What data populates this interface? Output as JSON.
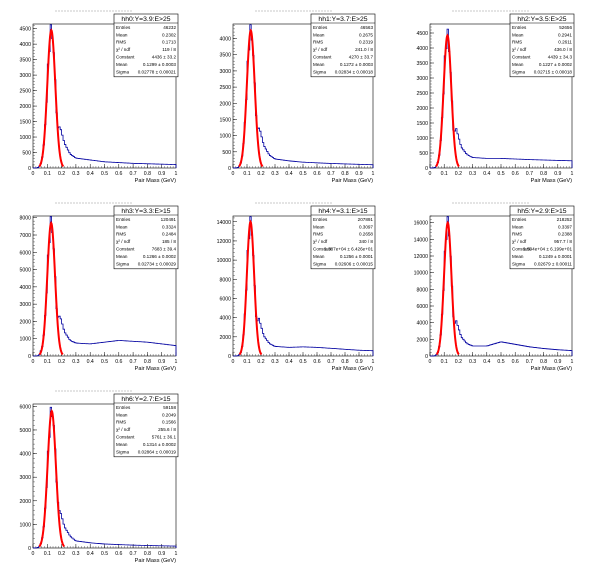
{
  "chart_data": [
    {
      "type": "histogram",
      "title": "hh0:Y=3.9:E>25",
      "xlabel": "Pair Mass (GeV)",
      "xlim": [
        0,
        1
      ],
      "ylim": [
        0,
        4650
      ],
      "xticks": [
        "0",
        "0.1",
        "0.2",
        "0.3",
        "0.4",
        "0.5",
        "0.6",
        "0.7",
        "0.8",
        "0.9",
        "1"
      ],
      "yticks": [
        "0",
        "500",
        "1000",
        "1500",
        "2000",
        "2500",
        "3000",
        "3500",
        "4000",
        "4500"
      ],
      "peak": {
        "x": 0.128,
        "y": 4450,
        "sigma": 0.028
      },
      "tail": [
        [
          0.18,
          1500
        ],
        [
          0.22,
          800
        ],
        [
          0.26,
          450
        ],
        [
          0.3,
          320
        ],
        [
          0.4,
          260
        ],
        [
          0.5,
          200
        ],
        [
          0.7,
          150
        ],
        [
          1.0,
          110
        ]
      ],
      "stats": [
        {
          "label": "Entries",
          "value": "46232"
        },
        {
          "label": "Mean",
          "value": "0.2302"
        },
        {
          "label": "RMS",
          "value": "0.1713"
        },
        {
          "label": "χ² / ndf",
          "value": "119 / 8"
        },
        {
          "label": "Constant",
          "value": "4436 ± 33.2"
        },
        {
          "label": "Mean",
          "value": "0.1299 ± 0.0003"
        },
        {
          "label": "Sigma",
          "value": "0.02778 ± 0.00021"
        }
      ]
    },
    {
      "type": "histogram",
      "title": "hh1:Y=3.7:E>25",
      "xlabel": "Pair Mass (GeV)",
      "xlim": [
        0,
        1
      ],
      "ylim": [
        0,
        4450
      ],
      "xticks": [
        "0",
        "0.1",
        "0.2",
        "0.3",
        "0.4",
        "0.5",
        "0.6",
        "0.7",
        "0.8",
        "0.9",
        "1"
      ],
      "yticks": [
        "0",
        "500",
        "1000",
        "1500",
        "2000",
        "2500",
        "3000",
        "3500",
        "4000"
      ],
      "peak": {
        "x": 0.127,
        "y": 4250,
        "sigma": 0.028
      },
      "tail": [
        [
          0.18,
          1400
        ],
        [
          0.22,
          700
        ],
        [
          0.26,
          400
        ],
        [
          0.3,
          280
        ],
        [
          0.4,
          220
        ],
        [
          0.5,
          180
        ],
        [
          0.7,
          140
        ],
        [
          1.0,
          100
        ]
      ],
      "stats": [
        {
          "label": "Entries",
          "value": "46563"
        },
        {
          "label": "Mean",
          "value": "0.2675"
        },
        {
          "label": "RMS",
          "value": "0.2319"
        },
        {
          "label": "χ² / ndf",
          "value": "241.0 / 8"
        },
        {
          "label": "Constant",
          "value": "4270 ± 33.7"
        },
        {
          "label": "Mean",
          "value": "0.1272 ± 0.0003"
        },
        {
          "label": "Sigma",
          "value": "0.02834 ± 0.00018"
        }
      ]
    },
    {
      "type": "histogram",
      "title": "hh2:Y=3.5:E>25",
      "xlabel": "Pair Mass (GeV)",
      "xlim": [
        0,
        1
      ],
      "ylim": [
        0,
        4800
      ],
      "xticks": [
        "0",
        "0.1",
        "0.2",
        "0.3",
        "0.4",
        "0.5",
        "0.6",
        "0.7",
        "0.8",
        "0.9",
        "1"
      ],
      "yticks": [
        "0",
        "500",
        "1000",
        "1500",
        "2000",
        "2500",
        "3000",
        "3500",
        "4000",
        "4500"
      ],
      "peak": {
        "x": 0.123,
        "y": 4420,
        "sigma": 0.027
      },
      "tail": [
        [
          0.18,
          1400
        ],
        [
          0.22,
          700
        ],
        [
          0.26,
          450
        ],
        [
          0.3,
          350
        ],
        [
          0.4,
          320
        ],
        [
          0.5,
          320
        ],
        [
          0.7,
          280
        ],
        [
          1.0,
          240
        ]
      ],
      "stats": [
        {
          "label": "Entries",
          "value": "52656"
        },
        {
          "label": "Mean",
          "value": "0.2941"
        },
        {
          "label": "RMS",
          "value": "0.2611"
        },
        {
          "label": "χ² / ndf",
          "value": "436.0 / 8"
        },
        {
          "label": "Constant",
          "value": "4439 ± 34.3"
        },
        {
          "label": "Mean",
          "value": "0.1227 ± 0.0002"
        },
        {
          "label": "Sigma",
          "value": "0.02715 ± 0.00018"
        }
      ]
    },
    {
      "type": "histogram",
      "title": "hh3:Y=3.3:E>15",
      "xlabel": "Pair Mass (GeV)",
      "xlim": [
        0,
        1
      ],
      "ylim": [
        0,
        8100
      ],
      "xticks": [
        "0",
        "0.1",
        "0.2",
        "0.3",
        "0.4",
        "0.5",
        "0.6",
        "0.7",
        "0.8",
        "0.9",
        "1"
      ],
      "yticks": [
        "0",
        "1000",
        "2000",
        "3000",
        "4000",
        "5000",
        "6000",
        "7000",
        "8000"
      ],
      "peak": {
        "x": 0.127,
        "y": 7700,
        "sigma": 0.027
      },
      "tail": [
        [
          0.18,
          2600
        ],
        [
          0.22,
          1400
        ],
        [
          0.26,
          900
        ],
        [
          0.3,
          750
        ],
        [
          0.4,
          700
        ],
        [
          0.5,
          800
        ],
        [
          0.6,
          900
        ],
        [
          0.7,
          850
        ],
        [
          0.8,
          800
        ],
        [
          0.9,
          700
        ],
        [
          1.0,
          600
        ]
      ],
      "stats": [
        {
          "label": "Entries",
          "value": "120491"
        },
        {
          "label": "Mean",
          "value": "0.3324"
        },
        {
          "label": "RMS",
          "value": "0.2484"
        },
        {
          "label": "χ² / ndf",
          "value": "185 / 8"
        },
        {
          "label": "Constant",
          "value": "7683 ± 39.4"
        },
        {
          "label": "Mean",
          "value": "0.1266 ± 0.0002"
        },
        {
          "label": "Sigma",
          "value": "0.02734 ± 0.00029"
        }
      ]
    },
    {
      "type": "histogram",
      "title": "hh4:Y=3.1:E>15",
      "xlabel": "Pair Mass (GeV)",
      "xlim": [
        0,
        1
      ],
      "ylim": [
        0,
        14600
      ],
      "xticks": [
        "0",
        "0.1",
        "0.2",
        "0.3",
        "0.4",
        "0.5",
        "0.6",
        "0.7",
        "0.8",
        "0.9",
        "1"
      ],
      "yticks": [
        "0",
        "2000",
        "4000",
        "6000",
        "8000",
        "10000",
        "12000",
        "14000"
      ],
      "peak": {
        "x": 0.125,
        "y": 14000,
        "sigma": 0.026
      },
      "tail": [
        [
          0.18,
          4200
        ],
        [
          0.22,
          2100
        ],
        [
          0.26,
          1300
        ],
        [
          0.3,
          1000
        ],
        [
          0.4,
          900
        ],
        [
          0.5,
          950
        ],
        [
          0.6,
          900
        ],
        [
          0.7,
          800
        ],
        [
          0.8,
          700
        ],
        [
          0.9,
          600
        ],
        [
          1.0,
          550
        ]
      ],
      "stats": [
        {
          "label": "Entries",
          "value": "207891"
        },
        {
          "label": "Mean",
          "value": "0.3097"
        },
        {
          "label": "RMS",
          "value": "0.2658"
        },
        {
          "label": "χ² / ndf",
          "value": "340 / 8"
        },
        {
          "label": "Constant",
          "value": "1.387e+04 ± 6.426e+01"
        },
        {
          "label": "Mean",
          "value": "0.1256 ± 0.0001"
        },
        {
          "label": "Sigma",
          "value": "0.02606 ± 0.00015"
        }
      ]
    },
    {
      "type": "histogram",
      "title": "hh5:Y=2.9:E>15",
      "xlabel": "Pair Mass (GeV)",
      "xlim": [
        0,
        1
      ],
      "ylim": [
        0,
        16800
      ],
      "xticks": [
        "0",
        "0.1",
        "0.2",
        "0.3",
        "0.4",
        "0.5",
        "0.6",
        "0.7",
        "0.8",
        "0.9",
        "1"
      ],
      "yticks": [
        "0",
        "2000",
        "4000",
        "6000",
        "8000",
        "10000",
        "12000",
        "14000",
        "16000"
      ],
      "peak": {
        "x": 0.125,
        "y": 16000,
        "sigma": 0.026
      },
      "tail": [
        [
          0.18,
          4500
        ],
        [
          0.22,
          2300
        ],
        [
          0.26,
          1500
        ],
        [
          0.3,
          1200
        ],
        [
          0.4,
          1200
        ],
        [
          0.5,
          1700
        ],
        [
          0.6,
          1400
        ],
        [
          0.7,
          1100
        ],
        [
          0.8,
          900
        ],
        [
          0.9,
          750
        ],
        [
          1.0,
          650
        ]
      ],
      "stats": [
        {
          "label": "Entries",
          "value": "218252"
        },
        {
          "label": "Mean",
          "value": "0.3397"
        },
        {
          "label": "RMS",
          "value": "0.2388"
        },
        {
          "label": "χ² / ndf",
          "value": "957.7 / 8"
        },
        {
          "label": "Constant",
          "value": "1.594e+04 ± 6.199e+01"
        },
        {
          "label": "Mean",
          "value": "0.1249 ± 0.0001"
        },
        {
          "label": "Sigma",
          "value": "0.02679 ± 0.00011"
        }
      ]
    },
    {
      "type": "histogram",
      "title": "hh6:Y=2.7:E>15",
      "xlabel": "Pair Mass (GeV)",
      "xlim": [
        0,
        1
      ],
      "ylim": [
        0,
        6100
      ],
      "xticks": [
        "0",
        "0.1",
        "0.2",
        "0.3",
        "0.4",
        "0.5",
        "0.6",
        "0.7",
        "0.8",
        "0.9",
        "1"
      ],
      "yticks": [
        "0",
        "1000",
        "2000",
        "3000",
        "4000",
        "5000",
        "6000"
      ],
      "peak": {
        "x": 0.131,
        "y": 5800,
        "sigma": 0.029
      },
      "tail": [
        [
          0.18,
          1800
        ],
        [
          0.22,
          900
        ],
        [
          0.26,
          500
        ],
        [
          0.3,
          300
        ],
        [
          0.4,
          220
        ],
        [
          0.5,
          170
        ],
        [
          0.7,
          120
        ],
        [
          1.0,
          80
        ]
      ],
      "stats": [
        {
          "label": "Entries",
          "value": "59158"
        },
        {
          "label": "Mean",
          "value": "0.2049"
        },
        {
          "label": "RMS",
          "value": "0.1566"
        },
        {
          "label": "χ² / ndf",
          "value": "255.6 / 8"
        },
        {
          "label": "Constant",
          "value": "5761 ± 36.1"
        },
        {
          "label": "Mean",
          "value": "0.1314 ± 0.0002"
        },
        {
          "label": "Sigma",
          "value": "0.02864 ± 0.00019"
        }
      ]
    }
  ]
}
